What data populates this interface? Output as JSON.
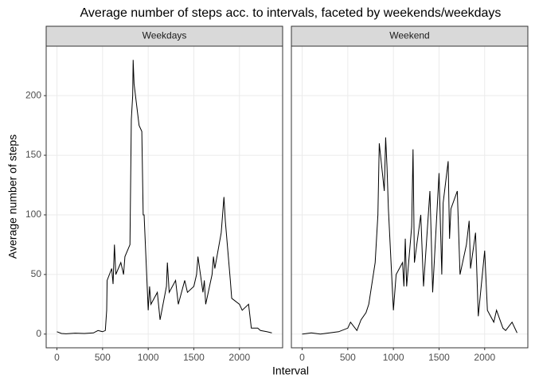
{
  "chart_data": {
    "type": "line",
    "title": "Average number of steps acc. to intervals, faceted by weekends/weekdays",
    "xlabel": "Interval",
    "ylabel": "Average number of steps",
    "color": "#000000",
    "grid": true,
    "xlim": [
      -118,
      2473
    ],
    "ylim": [
      -11.5,
      241.5
    ],
    "xticks": [
      0,
      500,
      1000,
      1500,
      2000
    ],
    "yticks": [
      0,
      50,
      100,
      150,
      200
    ],
    "facets": [
      {
        "name": "Weekdays",
        "x": [
          0,
          50,
          100,
          200,
          300,
          400,
          450,
          500,
          530,
          545,
          550,
          600,
          615,
          630,
          645,
          700,
          730,
          745,
          800,
          815,
          830,
          835,
          845,
          900,
          930,
          945,
          955,
          1000,
          1015,
          1030,
          1100,
          1130,
          1200,
          1210,
          1230,
          1300,
          1330,
          1400,
          1430,
          1500,
          1530,
          1545,
          1600,
          1615,
          1630,
          1700,
          1715,
          1730,
          1800,
          1830,
          1845,
          1900,
          1915,
          2000,
          2030,
          2100,
          2130,
          2200,
          2230,
          2300,
          2355
        ],
        "values": [
          2,
          0.5,
          0.3,
          0.8,
          0.5,
          1,
          3,
          2,
          3,
          20,
          45,
          55,
          42,
          75,
          50,
          60,
          50,
          65,
          75,
          180,
          200,
          230,
          210,
          175,
          170,
          100,
          100,
          20,
          40,
          25,
          35,
          12,
          40,
          60,
          35,
          45,
          25,
          45,
          35,
          40,
          50,
          65,
          35,
          45,
          25,
          50,
          65,
          55,
          85,
          115,
          95,
          45,
          30,
          25,
          20,
          25,
          5,
          5,
          3,
          2,
          1
        ]
      },
      {
        "name": "Weekend",
        "x": [
          0,
          100,
          200,
          400,
          500,
          530,
          600,
          645,
          700,
          730,
          800,
          830,
          845,
          900,
          915,
          930,
          945,
          1000,
          1030,
          1100,
          1115,
          1130,
          1145,
          1200,
          1215,
          1230,
          1300,
          1330,
          1400,
          1415,
          1430,
          1500,
          1530,
          1545,
          1600,
          1615,
          1630,
          1700,
          1730,
          1800,
          1830,
          1845,
          1900,
          1930,
          2000,
          2030,
          2100,
          2130,
          2200,
          2230,
          2300,
          2355
        ],
        "values": [
          0,
          1,
          0,
          2,
          5,
          10,
          3,
          12,
          18,
          25,
          60,
          100,
          160,
          120,
          165,
          140,
          105,
          20,
          50,
          60,
          40,
          80,
          40,
          90,
          155,
          60,
          100,
          40,
          120,
          80,
          35,
          135,
          50,
          110,
          145,
          80,
          105,
          120,
          50,
          75,
          95,
          55,
          85,
          15,
          70,
          20,
          10,
          20,
          5,
          3,
          10,
          1
        ]
      }
    ]
  }
}
